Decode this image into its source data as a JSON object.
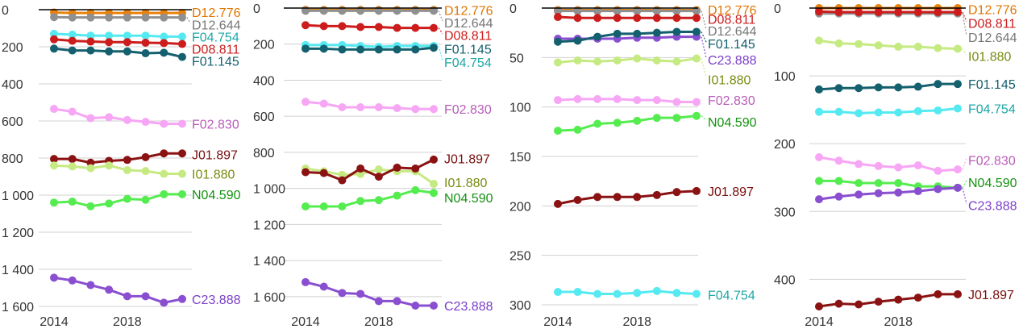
{
  "colors": {
    "D12.776": "#e8820c",
    "D12.644": "#909090",
    "F04.754": "#55eaf2",
    "D08.811": "#cc1c1c",
    "F01.145": "#14606e",
    "F02.830": "#f7a6f5",
    "J01.897": "#8b1212",
    "I01.880": "#c6ea82",
    "N04.590": "#55ec50",
    "C23.888": "#8a4fd0"
  },
  "label_colors": {
    "D12.776": "#e07500",
    "D12.644": "#767676",
    "F04.754": "#1fa6a6",
    "D08.811": "#cc1c1c",
    "F01.145": "#14606e",
    "F02.830": "#b85cb8",
    "J01.897": "#7a0e0e",
    "I01.880": "#7a8a10",
    "N04.590": "#13920f",
    "C23.888": "#7b3fc8"
  },
  "chart_data": [
    {
      "type": "line",
      "x": [
        2014,
        2015,
        2016,
        2017,
        2018,
        2019,
        2020,
        2021
      ],
      "xticks": [
        "2014",
        "2018"
      ],
      "ylim": [
        0,
        1600
      ],
      "yreversed": true,
      "yticks": [
        "0",
        "200",
        "400",
        "600",
        "800",
        "1 000",
        "1 200",
        "1 400",
        "1 600"
      ],
      "series": [
        {
          "name": "D12.776",
          "values": [
            15,
            18,
            18,
            18,
            18,
            18,
            18,
            18
          ]
        },
        {
          "name": "D12.644",
          "values": [
            40,
            42,
            42,
            42,
            42,
            42,
            42,
            42
          ]
        },
        {
          "name": "F04.754",
          "values": [
            130,
            135,
            140,
            140,
            140,
            140,
            145,
            145
          ]
        },
        {
          "name": "D08.811",
          "values": [
            160,
            168,
            172,
            175,
            175,
            178,
            180,
            185
          ]
        },
        {
          "name": "F01.145",
          "values": [
            210,
            220,
            220,
            225,
            225,
            235,
            232,
            255
          ]
        },
        {
          "name": "F02.830",
          "values": [
            535,
            550,
            585,
            580,
            595,
            605,
            615,
            615
          ]
        },
        {
          "name": "J01.897",
          "values": [
            805,
            805,
            825,
            815,
            810,
            795,
            775,
            775
          ]
        },
        {
          "name": "I01.880",
          "values": [
            840,
            845,
            855,
            840,
            865,
            870,
            885,
            885
          ]
        },
        {
          "name": "N04.590",
          "values": [
            1040,
            1035,
            1060,
            1045,
            1020,
            1025,
            995,
            995
          ]
        },
        {
          "name": "C23.888",
          "values": [
            1445,
            1460,
            1485,
            1510,
            1545,
            1545,
            1580,
            1560
          ]
        }
      ],
      "labels": [
        {
          "name": "D12.776",
          "value": 12
        },
        {
          "name": "D12.644",
          "value": 80
        },
        {
          "name": "F04.754",
          "value": 145
        },
        {
          "name": "D08.811",
          "value": 210
        },
        {
          "name": "F01.145",
          "value": 275
        },
        {
          "name": "F02.830",
          "value": 615
        },
        {
          "name": "J01.897",
          "value": 780
        },
        {
          "name": "I01.880",
          "value": 885
        },
        {
          "name": "N04.590",
          "value": 995
        },
        {
          "name": "C23.888",
          "value": 1560
        }
      ]
    },
    {
      "type": "line",
      "x": [
        2014,
        2015,
        2016,
        2017,
        2018,
        2019,
        2020,
        2021
      ],
      "xticks": [
        "2014",
        "2018"
      ],
      "ylim": [
        0,
        1650
      ],
      "yreversed": true,
      "yticks": [
        "0",
        "200",
        "400",
        "600",
        "800",
        "1 000",
        "1 200",
        "1 400",
        "1 600"
      ],
      "series": [
        {
          "name": "D12.776",
          "values": [
            10,
            10,
            10,
            10,
            10,
            10,
            10,
            10
          ]
        },
        {
          "name": "D12.644",
          "values": [
            15,
            15,
            15,
            15,
            15,
            15,
            15,
            15
          ]
        },
        {
          "name": "D08.811",
          "values": [
            95,
            100,
            100,
            105,
            105,
            110,
            110,
            110
          ]
        },
        {
          "name": "F04.754",
          "values": [
            205,
            205,
            205,
            210,
            215,
            210,
            210,
            210
          ]
        },
        {
          "name": "F01.145",
          "values": [
            225,
            225,
            230,
            230,
            230,
            230,
            230,
            220
          ]
        },
        {
          "name": "F02.830",
          "values": [
            520,
            530,
            550,
            550,
            550,
            555,
            560,
            560
          ]
        },
        {
          "name": "I01.880",
          "values": [
            890,
            905,
            925,
            920,
            895,
            905,
            905,
            975
          ]
        },
        {
          "name": "J01.897",
          "values": [
            910,
            915,
            955,
            890,
            935,
            885,
            890,
            840
          ]
        },
        {
          "name": "N04.590",
          "values": [
            1100,
            1100,
            1100,
            1070,
            1065,
            1040,
            1010,
            1025
          ]
        },
        {
          "name": "C23.888",
          "values": [
            1520,
            1545,
            1580,
            1585,
            1625,
            1625,
            1650,
            1650
          ]
        }
      ],
      "labels": [
        {
          "name": "D12.776",
          "value": 12
        },
        {
          "name": "D12.644",
          "value": 80
        },
        {
          "name": "D08.811",
          "value": 150
        },
        {
          "name": "F01.145",
          "value": 225
        },
        {
          "name": "F04.754",
          "value": 300
        },
        {
          "name": "F02.830",
          "value": 560
        },
        {
          "name": "J01.897",
          "value": 835
        },
        {
          "name": "I01.880",
          "value": 965
        },
        {
          "name": "N04.590",
          "value": 1050
        },
        {
          "name": "C23.888",
          "value": 1650
        }
      ]
    },
    {
      "type": "line",
      "x": [
        2014,
        2015,
        2016,
        2017,
        2018,
        2019,
        2020,
        2021
      ],
      "xticks": [
        "2014",
        "2018"
      ],
      "ylim": [
        0,
        300
      ],
      "yreversed": true,
      "yticks": [
        "0",
        "50",
        "100",
        "150",
        "200",
        "250",
        "300"
      ],
      "series": [
        {
          "name": "D12.776",
          "values": [
            2,
            2,
            2,
            2,
            2,
            2,
            2,
            2
          ]
        },
        {
          "name": "D12.644",
          "values": [
            3,
            3,
            3,
            3,
            3,
            3,
            3,
            3
          ]
        },
        {
          "name": "D08.811",
          "values": [
            9,
            10,
            10,
            10,
            10,
            10,
            10,
            10
          ]
        },
        {
          "name": "C23.888",
          "values": [
            31,
            31,
            31,
            31,
            30,
            30,
            29,
            29
          ]
        },
        {
          "name": "F01.145",
          "values": [
            34,
            33,
            29,
            26,
            26,
            25,
            24,
            24
          ]
        },
        {
          "name": "I01.880",
          "values": [
            55,
            53,
            54,
            53,
            51,
            53,
            54,
            51
          ]
        },
        {
          "name": "F02.830",
          "values": [
            93,
            92,
            92,
            92,
            93,
            93,
            95,
            95
          ]
        },
        {
          "name": "N04.590",
          "values": [
            124,
            123,
            117,
            116,
            114,
            111,
            111,
            109
          ]
        },
        {
          "name": "J01.897",
          "values": [
            198,
            194,
            191,
            191,
            191,
            189,
            186,
            185
          ]
        },
        {
          "name": "F04.754",
          "values": [
            287,
            287,
            289,
            289,
            288,
            286,
            288,
            289
          ]
        }
      ],
      "labels": [
        {
          "name": "D12.776",
          "value": 1.5
        },
        {
          "name": "D08.811",
          "value": 11
        },
        {
          "name": "D12.644",
          "value": 23
        },
        {
          "name": "F01.145",
          "value": 36
        },
        {
          "name": "C23.888",
          "value": 52
        },
        {
          "name": "I01.880",
          "value": 72
        },
        {
          "name": "F02.830",
          "value": 93
        },
        {
          "name": "N04.590",
          "value": 115
        },
        {
          "name": "J01.897",
          "value": 185
        },
        {
          "name": "F04.754",
          "value": 290
        }
      ]
    },
    {
      "type": "line",
      "x": [
        2014,
        2015,
        2016,
        2017,
        2018,
        2019,
        2020,
        2021
      ],
      "xticks": [
        "2014",
        "2018"
      ],
      "ylim": [
        0,
        440
      ],
      "yreversed": true,
      "yticks": [
        "0",
        "100",
        "200",
        "300",
        "400"
      ],
      "series": [
        {
          "name": "D12.776",
          "values": [
            0,
            0,
            0,
            0,
            0,
            0,
            0,
            0
          ]
        },
        {
          "name": "D12.644",
          "values": [
            8,
            8,
            8,
            8,
            8,
            8,
            8,
            8
          ]
        },
        {
          "name": "D08.811",
          "values": [
            5,
            6,
            6,
            6,
            6,
            6,
            6,
            6
          ]
        },
        {
          "name": "I01.880",
          "values": [
            48,
            52,
            53,
            55,
            57,
            57,
            59,
            60
          ]
        },
        {
          "name": "F01.145",
          "values": [
            120,
            118,
            118,
            117,
            117,
            116,
            112,
            112
          ]
        },
        {
          "name": "F04.754",
          "values": [
            153,
            153,
            155,
            154,
            154,
            152,
            151,
            148
          ]
        },
        {
          "name": "F02.830",
          "values": [
            220,
            225,
            230,
            233,
            235,
            232,
            240,
            238
          ]
        },
        {
          "name": "N04.590",
          "values": [
            255,
            255,
            258,
            258,
            258,
            263,
            263,
            265
          ]
        },
        {
          "name": "C23.888",
          "values": [
            282,
            278,
            275,
            273,
            272,
            270,
            267,
            265
          ]
        },
        {
          "name": "J01.897",
          "values": [
            440,
            436,
            437,
            433,
            430,
            427,
            422,
            422
          ]
        }
      ],
      "labels": [
        {
          "name": "D12.776",
          "value": 1.5
        },
        {
          "name": "D08.811",
          "value": 22
        },
        {
          "name": "D12.644",
          "value": 43
        },
        {
          "name": "I01.880",
          "value": 71
        },
        {
          "name": "F01.145",
          "value": 112
        },
        {
          "name": "F04.754",
          "value": 148
        },
        {
          "name": "F02.830",
          "value": 224
        },
        {
          "name": "N04.590",
          "value": 257
        },
        {
          "name": "C23.888",
          "value": 291
        },
        {
          "name": "J01.897",
          "value": 422
        }
      ]
    }
  ]
}
